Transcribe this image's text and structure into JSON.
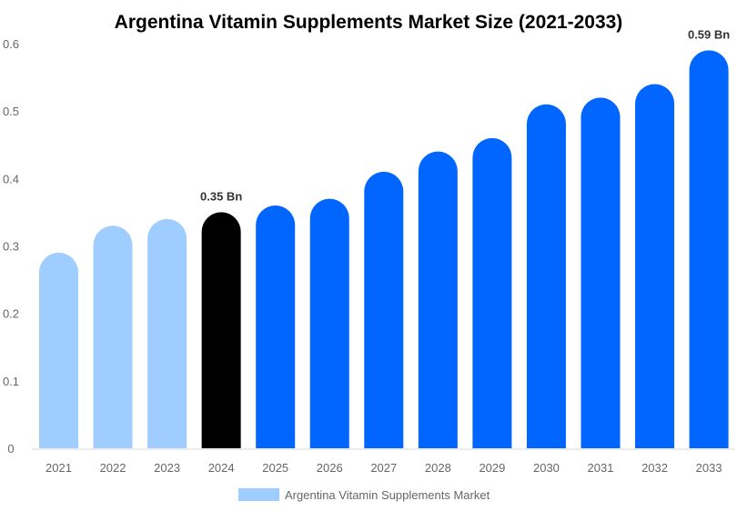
{
  "chart_data": {
    "type": "bar",
    "title": "Argentina Vitamin Supplements Market Size (2021-2033)",
    "xlabel": "",
    "ylabel": "",
    "categories": [
      "2021",
      "2022",
      "2023",
      "2024",
      "2025",
      "2026",
      "2027",
      "2028",
      "2029",
      "2030",
      "2031",
      "2032",
      "2033"
    ],
    "series": [
      {
        "name": "Argentina Vitamin Supplements Market",
        "values": [
          0.29,
          0.33,
          0.34,
          0.35,
          0.36,
          0.37,
          0.41,
          0.44,
          0.46,
          0.51,
          0.52,
          0.54,
          0.59
        ]
      }
    ],
    "bar_colors": [
      "#a0cdff",
      "#a0cdff",
      "#a0cdff",
      "#000000",
      "#0066ff",
      "#0066ff",
      "#0066ff",
      "#0066ff",
      "#0066ff",
      "#0066ff",
      "#0066ff",
      "#0066ff",
      "#0066ff"
    ],
    "ylim": [
      0,
      0.6
    ],
    "yticks": [
      "0",
      "0.1",
      "0.2",
      "0.3",
      "0.4",
      "0.5",
      "0.6"
    ],
    "grid": false,
    "legend_position": "bottom",
    "legend_color": "#a0cdff",
    "annotations": [
      {
        "index": 3,
        "text": "0.35 Bn"
      },
      {
        "index": 12,
        "text": "0.59 Bn"
      }
    ]
  }
}
